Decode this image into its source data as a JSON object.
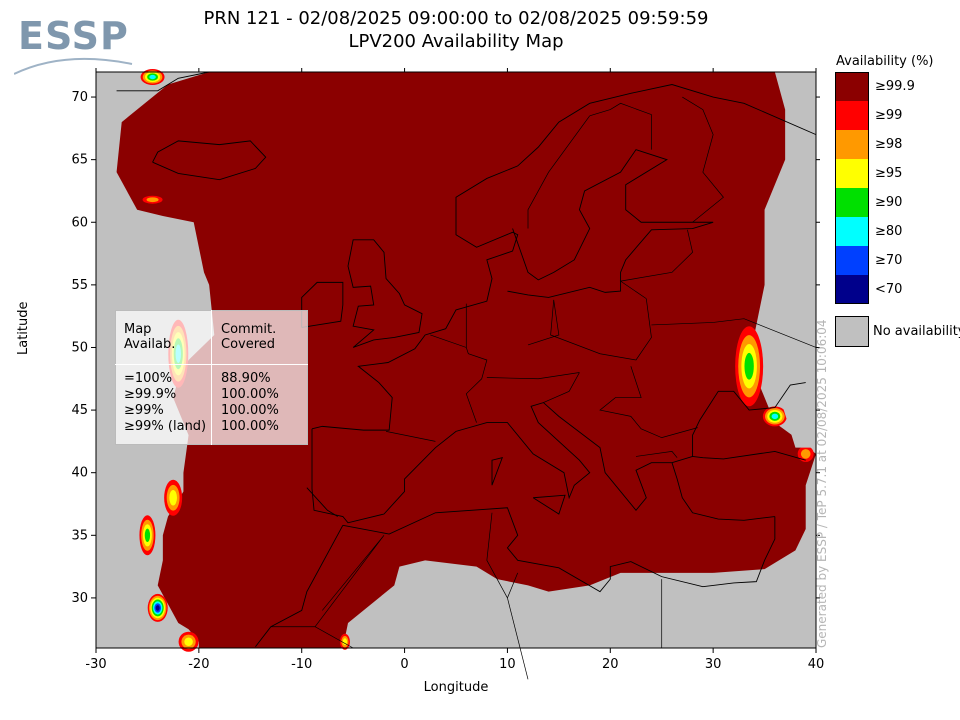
{
  "header": {
    "logo_text": "ESSP",
    "title_line1": "PRN 121 - 02/08/2025 09:00:00 to 02/08/2025 09:59:59",
    "title_line2": "LPV200 Availability Map"
  },
  "chart_data": {
    "type": "heatmap",
    "title": "PRN 121 - 02/08/2025 09:00:00 to 02/08/2025 09:59:59 LPV200 Availability Map",
    "xlabel": "Longitude",
    "ylabel": "Latitude",
    "xlim": [
      -30,
      40
    ],
    "ylim": [
      26,
      72
    ],
    "x_ticks": [
      -30,
      -20,
      -10,
      0,
      10,
      20,
      30,
      40
    ],
    "y_ticks": [
      30,
      35,
      40,
      45,
      50,
      55,
      60,
      65,
      70
    ],
    "legend_title": "Availability (%)",
    "legend": [
      {
        "label": "≥99.9",
        "color": "#8b0000"
      },
      {
        "label": "≥99",
        "color": "#ff0000"
      },
      {
        "label": "≥98",
        "color": "#ff9900"
      },
      {
        "label": "≥95",
        "color": "#ffff00"
      },
      {
        "label": "≥90",
        "color": "#00e000"
      },
      {
        "label": "≥80",
        "color": "#00ffff"
      },
      {
        "label": "≥70",
        "color": "#0040ff"
      },
      {
        "label": "<70",
        "color": "#00008b"
      }
    ],
    "no_availability": {
      "label": "No availability",
      "color": "#c0c0c0"
    },
    "stats_table": {
      "headers": [
        "Map Availab.",
        "Commit. Covered"
      ],
      "rows": [
        [
          "=100%",
          "88.90%"
        ],
        [
          "≥99.9%",
          "100.00%"
        ],
        [
          "≥99%",
          "100.00%"
        ],
        [
          "≥99% (land)",
          "100.00%"
        ]
      ]
    },
    "footer_note": "Generated by ESSP / TeP 5.7.1 at 02/08/2025 10:06:04"
  }
}
